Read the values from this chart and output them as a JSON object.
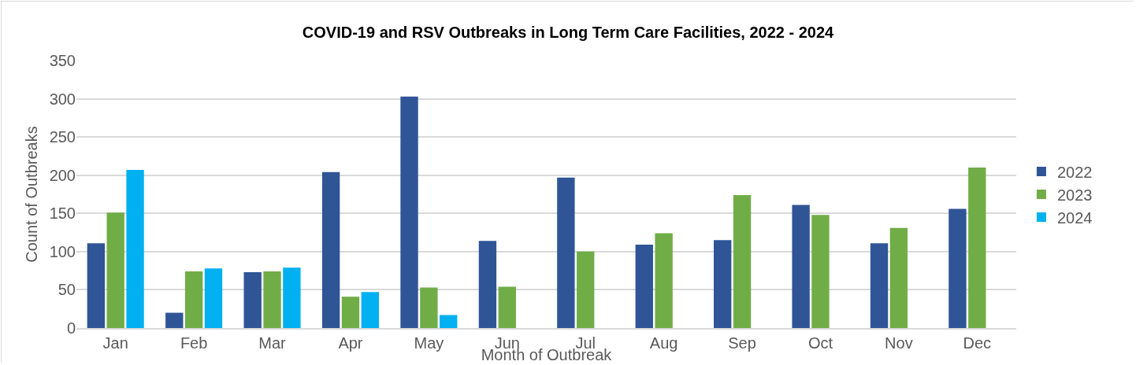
{
  "chart_data": {
    "type": "bar",
    "title": "COVID-19 and RSV Outbreaks in Long Term Care Facilities, 2022 - 2024",
    "xlabel": "Month of Outbreak",
    "ylabel": "Count of Outbreaks",
    "categories": [
      "Jan",
      "Feb",
      "Mar",
      "Apr",
      "May",
      "Jun",
      "Jul",
      "Aug",
      "Sep",
      "Oct",
      "Nov",
      "Dec"
    ],
    "series": [
      {
        "name": "2022",
        "color": "#2f5597",
        "values": [
          111,
          20,
          73,
          204,
          303,
          114,
          197,
          109,
          115,
          161,
          111,
          156
        ]
      },
      {
        "name": "2023",
        "color": "#70ad47",
        "values": [
          151,
          74,
          74,
          41,
          53,
          54,
          100,
          124,
          174,
          148,
          131,
          210
        ]
      },
      {
        "name": "2024",
        "color": "#00b0f0",
        "values": [
          207,
          78,
          79,
          47,
          17,
          null,
          null,
          null,
          null,
          null,
          null,
          null
        ]
      }
    ],
    "ylim": [
      0,
      350
    ],
    "yticks": [
      0,
      50,
      100,
      150,
      200,
      250,
      300,
      350
    ],
    "grid": "y",
    "legend": "right"
  }
}
